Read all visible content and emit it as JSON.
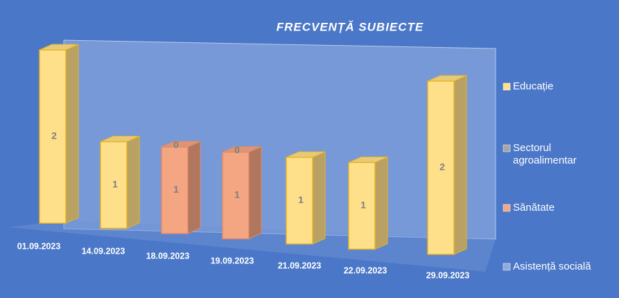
{
  "chart_data": {
    "type": "bar3d_stacked",
    "title": "FRECVENȚĂ SUBIECTE",
    "categories": [
      "01.09.2023",
      "14.09.2023",
      "18.09.2023",
      "19.09.2023",
      "21.09.2023",
      "22.09.2023",
      "29.09.2023"
    ],
    "series": [
      {
        "name": "Sănătate",
        "color": "#f4a582",
        "values": [
          0,
          0,
          1,
          1,
          0,
          0,
          0
        ]
      },
      {
        "name": "Educație",
        "color": "#ffe08a",
        "values": [
          2,
          1,
          0,
          0,
          1,
          1,
          2
        ]
      },
      {
        "name": "Sectorul agroalimentar",
        "color": "#a5a5a5",
        "values": [
          0,
          0,
          0,
          0,
          0,
          0,
          0
        ]
      },
      {
        "name": "Asistență socială",
        "color": "#8faadc",
        "values": [
          0,
          0,
          0,
          0,
          0,
          0,
          0
        ]
      }
    ],
    "legend_order": [
      1,
      2,
      0,
      3
    ]
  }
}
